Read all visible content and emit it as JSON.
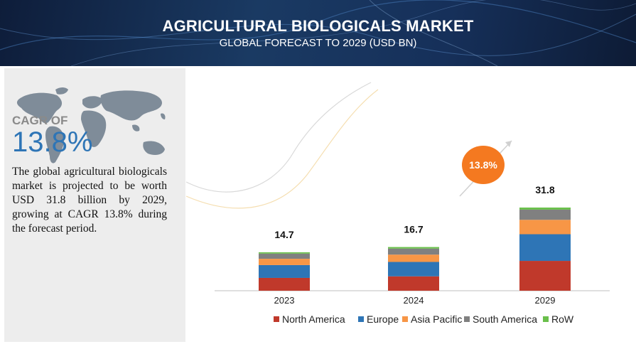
{
  "header": {
    "title": "AGRICULTURAL BIOLOGICALS MARKET",
    "subtitle": "GLOBAL FORECAST TO 2029 (USD BN)"
  },
  "summary": {
    "cagr_label": "CAGR OF",
    "cagr_value": "13.8%",
    "description": "The global agricultural biologicals market is projected to be worth USD 31.8 billion by 2029, growing at CAGR 13.8% during the forecast period."
  },
  "colors": {
    "north_america": "#c0392b",
    "europe": "#2e75b6",
    "asia_pacific": "#f79646",
    "south_america": "#808080",
    "row": "#6abf4b",
    "cagr_badge": "#f47920"
  },
  "chart_data": {
    "type": "bar",
    "stacked": true,
    "categories": [
      "2023",
      "2024",
      "2029"
    ],
    "totals": [
      "14.7",
      "16.7",
      "31.8"
    ],
    "series": [
      {
        "name": "North America",
        "values": [
          4.9,
          5.5,
          11.4
        ]
      },
      {
        "name": "Europe",
        "values": [
          4.9,
          5.5,
          10.2
        ]
      },
      {
        "name": "Asia Pacific",
        "values": [
          2.4,
          2.8,
          5.5
        ]
      },
      {
        "name": "South America",
        "values": [
          2.0,
          2.3,
          3.9
        ]
      },
      {
        "name": "RoW",
        "values": [
          0.5,
          0.6,
          0.8
        ]
      }
    ],
    "annotation": "13.8%",
    "legend_position": "bottom",
    "grid": false
  }
}
